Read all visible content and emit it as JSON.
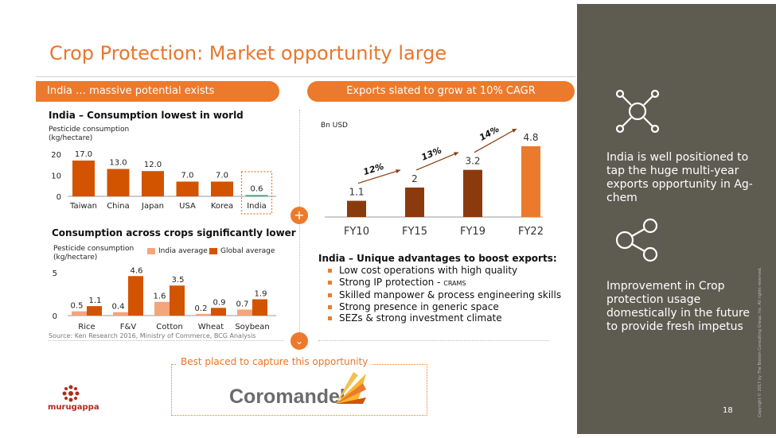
{
  "title": "Crop Protection: Market opportunity large",
  "left_panel": {
    "pill": "India … massive potential exists",
    "chart1_heading": "India – Consumption lowest in world",
    "chart2_heading": "Consumption across crops significantly lower",
    "source": "Source: Ken Research 2016, Ministry of Commerce, BCG Analysis"
  },
  "right_panel": {
    "pill": "Exports slated to grow at 10% CAGR",
    "advantages_heading": "India – Unique advantages to boost exports:",
    "advantages": [
      {
        "text": "Low cost operations with high quality",
        "suffix": ""
      },
      {
        "text": "Strong IP protection - ",
        "suffix": "CRAMS"
      },
      {
        "text": "Skilled manpower & process engineering skills",
        "suffix": ""
      },
      {
        "text": "Strong presence in generic space",
        "suffix": ""
      },
      {
        "text": "SEZs & strong investment climate",
        "suffix": ""
      }
    ]
  },
  "bottom": {
    "caption": "Best placed to capture this opportunity",
    "company_logo": "Coromandel",
    "group_logo": "murugappa"
  },
  "sidebar": {
    "text1": "India is well positioned to tap the huge multi-year exports opportunity in Ag-chem",
    "text2": "Improvement in Crop protection usage domestically in the future to provide fresh impetus",
    "icon1": "network-arrows-icon",
    "icon2": "share-nodes-icon",
    "copyright": "Copyright © 2017 by The Boston Consulting Group, Inc. All rights reserved.",
    "page_number": "18"
  },
  "colors": {
    "accent": "#ec7a2c",
    "dark_orange": "#d35400",
    "brown": "#8b3a0e",
    "light_orange": "#f4a57a",
    "green": "#3aa66b",
    "sidebar": "#5e5b51"
  },
  "chart_data": [
    {
      "type": "bar",
      "title": "India – Consumption lowest in world",
      "ylabel": "Pesticide consumption (kg/hectare)",
      "categories": [
        "Taiwan",
        "China",
        "Japan",
        "USA",
        "Korea",
        "India"
      ],
      "values": [
        17.0,
        13.0,
        12.0,
        7.0,
        7.0,
        0.6
      ],
      "value_labels": [
        "17.0",
        "13.0",
        "12.0",
        "7.0",
        "7.0",
        "0.6"
      ],
      "yticks": [
        "0",
        "10",
        "20"
      ],
      "ylim": [
        0,
        20
      ],
      "highlight": "India"
    },
    {
      "type": "bar",
      "title": "Consumption across crops significantly lower",
      "ylabel": "Pesticide consumption (kg/hectare)",
      "categories": [
        "Rice",
        "F&V",
        "Cotton",
        "Wheat",
        "Soybean"
      ],
      "series": [
        {
          "name": "India average",
          "values": [
            0.5,
            0.4,
            1.6,
            0.2,
            0.7
          ],
          "labels": [
            "0.5",
            "0.4",
            "1.6",
            "0.2",
            "0.7"
          ]
        },
        {
          "name": "Global average",
          "values": [
            1.1,
            4.6,
            3.5,
            0.9,
            1.9
          ],
          "labels": [
            "1.1",
            "4.6",
            "3.5",
            "0.9",
            "1.9"
          ]
        }
      ],
      "yticks": [
        "0",
        "5"
      ],
      "ylim": [
        0,
        5
      ]
    },
    {
      "type": "bar",
      "unit": "Bn USD",
      "categories": [
        "FY10",
        "FY15",
        "FY19",
        "FY22"
      ],
      "values": [
        1.1,
        2,
        3.2,
        4.8
      ],
      "value_labels": [
        "1.1",
        "2",
        "3.2",
        "4.8"
      ],
      "growth_labels": [
        "12%",
        "13%",
        "14%"
      ],
      "ylim": [
        0,
        4.8
      ]
    }
  ]
}
